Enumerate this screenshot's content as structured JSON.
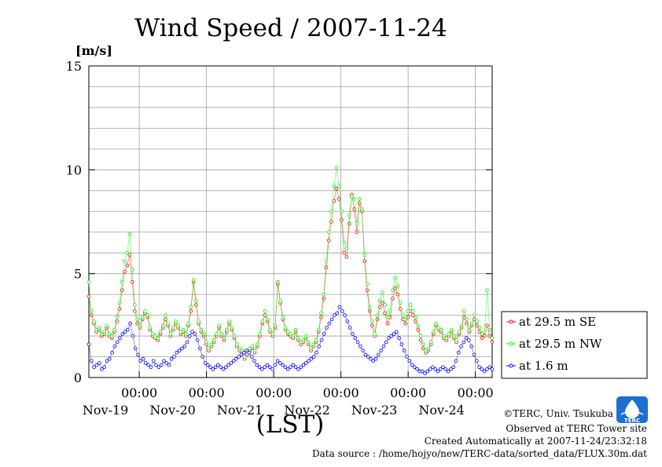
{
  "chart_data": {
    "type": "line",
    "title": "Wind Speed / 2007-11-24",
    "unit": "[m/s]",
    "xlabel": "(LST)",
    "ylim": [
      0,
      15
    ],
    "yticks": [
      "0",
      "5",
      "10",
      "15"
    ],
    "x_range_hours": [
      -18,
      6
    ],
    "x_ticks": [
      {
        "time": "00:00",
        "date": "Nov-19"
      },
      {
        "time": "00:00",
        "date": "Nov-20"
      },
      {
        "time": "00:00",
        "date": "Nov-21"
      },
      {
        "time": "00:00",
        "date": "Nov-22"
      },
      {
        "time": "00:00",
        "date": "Nov-23"
      },
      {
        "time": "00:00",
        "date": "Nov-24"
      }
    ],
    "grid": true,
    "legend_position": "right",
    "series": [
      {
        "name": "at 29.5 m SE",
        "color": "#ff0000",
        "marker": "circle",
        "values": [
          3.9,
          3.0,
          2.6,
          2.2,
          2.3,
          2.0,
          2.1,
          2.4,
          2.0,
          1.9,
          2.2,
          2.7,
          3.3,
          4.2,
          5.1,
          5.4,
          5.9,
          4.6,
          3.2,
          2.6,
          2.4,
          2.8,
          3.1,
          2.9,
          2.3,
          2.0,
          1.9,
          1.8,
          2.1,
          2.4,
          2.8,
          2.5,
          2.0,
          2.3,
          2.6,
          2.4,
          2.1,
          2.2,
          2.0,
          2.5,
          3.2,
          4.6,
          3.5,
          2.6,
          2.2,
          2.0,
          1.6,
          1.3,
          1.5,
          1.7,
          2.0,
          2.4,
          2.0,
          1.8,
          2.2,
          2.6,
          2.3,
          1.9,
          1.5,
          1.3,
          1.2,
          0.9,
          1.1,
          1.3,
          1.4,
          1.2,
          1.5,
          2.0,
          2.6,
          3.0,
          2.7,
          2.2,
          2.0,
          2.4,
          4.5,
          3.6,
          2.8,
          2.3,
          2.1,
          2.0,
          1.9,
          2.2,
          1.8,
          1.6,
          1.7,
          1.9,
          1.6,
          1.3,
          1.5,
          1.7,
          2.2,
          2.9,
          3.8,
          5.3,
          6.6,
          7.5,
          8.5,
          9.1,
          8.6,
          7.6,
          6.0,
          5.8,
          7.4,
          8.8,
          8.1,
          7.0,
          8.4,
          8.0,
          5.6,
          4.2,
          3.2,
          2.5,
          2.0,
          2.8,
          3.4,
          3.6,
          3.1,
          2.6,
          2.9,
          3.8,
          4.3,
          4.0,
          3.3,
          2.8,
          2.6,
          2.9,
          3.2,
          3.0,
          2.7,
          2.3,
          1.8,
          1.4,
          1.2,
          1.3,
          1.6,
          2.1,
          2.5,
          2.3,
          2.2,
          1.9,
          1.8,
          2.0,
          2.2,
          1.9,
          1.7,
          2.1,
          2.4,
          2.9,
          2.6,
          2.2,
          2.5,
          2.8,
          2.5,
          2.2,
          1.9,
          2.0,
          2.5,
          2.0,
          1.7
        ]
      },
      {
        "name": "at 29.5 m NW",
        "color": "#00ff00",
        "marker": "circle",
        "values": [
          4.6,
          3.2,
          2.7,
          2.3,
          2.4,
          2.1,
          2.2,
          2.5,
          2.1,
          2.0,
          2.3,
          2.9,
          3.6,
          4.6,
          5.6,
          6.0,
          6.9,
          5.2,
          3.5,
          2.8,
          2.5,
          2.9,
          3.2,
          3.0,
          2.4,
          2.1,
          2.0,
          1.9,
          2.2,
          2.5,
          3.0,
          2.6,
          2.1,
          2.4,
          2.7,
          2.5,
          2.2,
          2.3,
          2.1,
          2.6,
          3.4,
          4.7,
          3.7,
          2.7,
          2.3,
          2.1,
          1.7,
          1.4,
          1.6,
          1.8,
          2.1,
          2.5,
          2.1,
          1.9,
          2.3,
          2.7,
          2.4,
          2.0,
          1.6,
          1.4,
          1.3,
          1.0,
          1.2,
          1.4,
          1.5,
          1.3,
          1.6,
          2.1,
          2.7,
          3.2,
          2.8,
          2.3,
          2.1,
          2.5,
          4.6,
          3.7,
          2.9,
          2.4,
          2.2,
          2.1,
          2.0,
          2.3,
          1.9,
          1.7,
          1.8,
          2.0,
          1.7,
          1.4,
          1.6,
          1.8,
          2.3,
          3.1,
          4.0,
          5.6,
          7.0,
          8.0,
          9.2,
          10.1,
          9.2,
          8.0,
          6.5,
          6.2,
          7.8,
          8.7,
          8.6,
          7.4,
          8.6,
          8.1,
          5.9,
          4.5,
          3.4,
          2.7,
          2.1,
          3.0,
          3.7,
          4.1,
          3.5,
          2.9,
          3.2,
          4.2,
          4.8,
          4.4,
          3.6,
          3.0,
          2.8,
          3.2,
          3.5,
          3.2,
          2.9,
          2.5,
          2.0,
          1.6,
          1.3,
          1.4,
          1.7,
          2.2,
          2.6,
          2.4,
          2.3,
          2.0,
          1.9,
          2.1,
          2.3,
          2.0,
          1.8,
          2.2,
          2.5,
          3.2,
          2.8,
          2.3,
          2.6,
          3.0,
          2.7,
          2.4,
          2.1,
          2.2,
          4.2,
          2.3,
          1.9
        ]
      },
      {
        "name": "at 1.6 m",
        "color": "#0000ff",
        "marker": "circle",
        "values": [
          1.6,
          0.8,
          0.5,
          0.6,
          0.7,
          0.4,
          0.5,
          0.8,
          0.9,
          1.2,
          1.5,
          1.7,
          1.9,
          2.1,
          2.2,
          2.3,
          2.6,
          2.0,
          1.4,
          1.1,
          0.8,
          0.9,
          0.7,
          0.6,
          0.5,
          0.8,
          0.6,
          0.5,
          0.6,
          0.8,
          0.7,
          0.6,
          0.9,
          1.0,
          1.2,
          1.3,
          1.4,
          1.5,
          1.7,
          2.0,
          2.2,
          2.1,
          1.8,
          1.4,
          1.0,
          0.7,
          0.6,
          0.5,
          0.4,
          0.5,
          0.6,
          0.5,
          0.4,
          0.5,
          0.6,
          0.7,
          0.8,
          0.9,
          1.0,
          1.1,
          1.2,
          1.3,
          1.2,
          1.0,
          0.8,
          0.6,
          0.5,
          0.4,
          0.5,
          0.6,
          0.5,
          0.4,
          0.6,
          0.8,
          0.7,
          0.6,
          0.5,
          0.4,
          0.5,
          0.6,
          0.5,
          0.4,
          0.5,
          0.6,
          0.7,
          0.8,
          0.9,
          1.0,
          1.2,
          1.5,
          1.8,
          2.1,
          2.4,
          2.6,
          2.8,
          3.0,
          3.1,
          3.4,
          3.2,
          3.0,
          2.7,
          2.4,
          2.1,
          1.9,
          1.7,
          1.5,
          1.3,
          1.1,
          1.0,
          0.9,
          0.8,
          0.9,
          1.1,
          1.3,
          1.5,
          1.7,
          1.9,
          2.0,
          2.1,
          2.2,
          1.9,
          1.6,
          1.3,
          1.0,
          0.8,
          0.6,
          0.5,
          0.4,
          0.3,
          0.3,
          0.2,
          0.3,
          0.4,
          0.5,
          0.4,
          0.3,
          0.4,
          0.5,
          0.4,
          0.3,
          0.4,
          0.5,
          0.8,
          1.2,
          1.5,
          1.7,
          1.9,
          1.8,
          1.5,
          1.1,
          0.8,
          0.5,
          0.4,
          0.3,
          0.4,
          0.5,
          0.4
        ]
      }
    ]
  },
  "credits": {
    "copyright": "©TERC, Univ. Tsukuba",
    "site": "Observed at TERC Tower site",
    "created": "Created Automatically at 2007-11-24/23:32:18",
    "source": "Data source : /home/hojyo/new/TERC-data/sorted_data/FLUX.30m.dat"
  },
  "logo": {
    "text": "TERC",
    "color": "#1e6fd0"
  }
}
